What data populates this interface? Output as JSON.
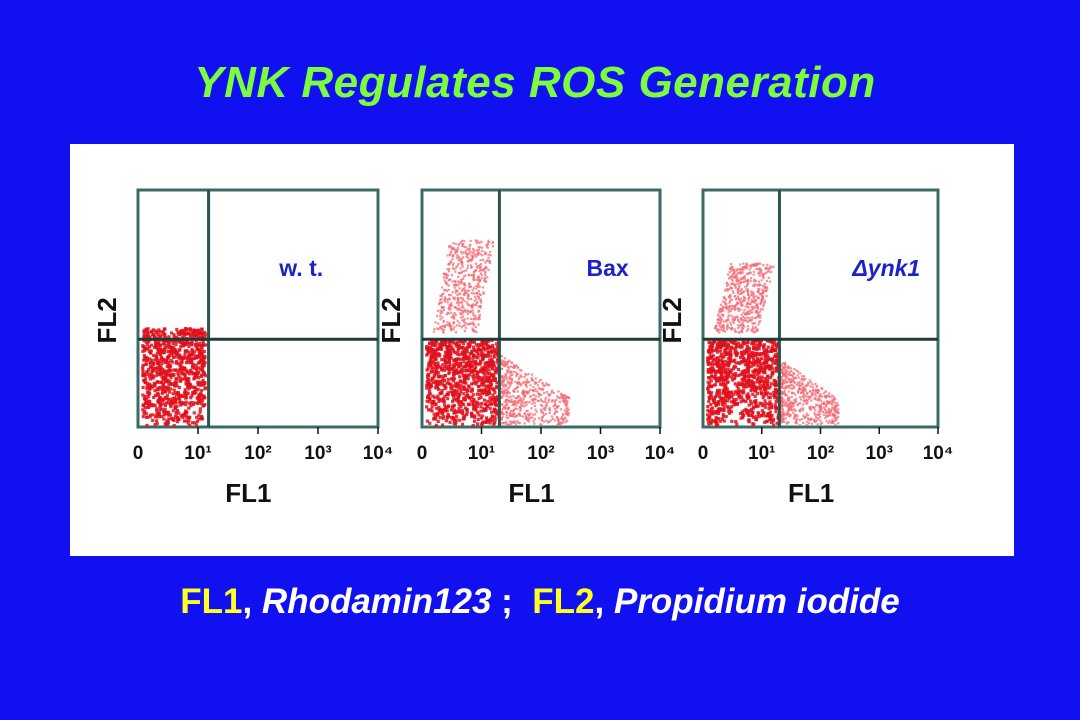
{
  "title": "YNK Regulates ROS Generation",
  "caption": {
    "fl1": "FL1",
    "fl1_dye": "Rhodamin123",
    "fl2": "FL2",
    "fl2_dye": "Propidium iodide"
  },
  "colors": {
    "background": "#1010f0",
    "title": "#7CFC3C",
    "highlight": "#FFFF22",
    "events_dense": "#e0101c",
    "events_sparse": "#f36b74",
    "label": "#1a22c8"
  },
  "chart_data": [
    {
      "type": "scatter",
      "label": "w. t.",
      "xlabel": "FL1",
      "ylabel": "FL2",
      "x_ticks": [
        "0",
        "10¹",
        "10²",
        "10³",
        "10⁴"
      ],
      "xlim": [
        0,
        10000
      ],
      "x_scale": "log",
      "quadrant_gate": {
        "x": 15,
        "y": 0.37
      },
      "populations": [
        {
          "region": "lower-left",
          "density": "dense",
          "x_range": [
            0,
            10
          ],
          "y_fraction": [
            0,
            0.42
          ]
        }
      ]
    },
    {
      "type": "scatter",
      "label": "Bax",
      "xlabel": "FL1",
      "ylabel": "FL2",
      "x_ticks": [
        "0",
        "10¹",
        "10²",
        "10³",
        "10⁴"
      ],
      "xlim": [
        0,
        10000
      ],
      "x_scale": "log",
      "quadrant_gate": {
        "x": 20,
        "y": 0.37
      },
      "populations": [
        {
          "region": "upper-left",
          "density": "sparse",
          "x_range": [
            0,
            15
          ],
          "y_fraction": [
            0.4,
            0.8
          ]
        },
        {
          "region": "lower-left",
          "density": "dense",
          "x_range": [
            0,
            15
          ],
          "y_fraction": [
            0,
            0.37
          ]
        },
        {
          "region": "lower-right",
          "density": "sparse",
          "x_range": [
            20,
            300
          ],
          "y_fraction": [
            0,
            0.3
          ]
        }
      ]
    },
    {
      "type": "scatter",
      "label": "Δynk1",
      "xlabel": "FL1",
      "ylabel": "FL2",
      "x_ticks": [
        "0",
        "10¹",
        "10²",
        "10³",
        "10⁴"
      ],
      "xlim": [
        0,
        10000
      ],
      "x_scale": "log",
      "quadrant_gate": {
        "x": 20,
        "y": 0.37
      },
      "populations": [
        {
          "region": "upper-left",
          "density": "sparse",
          "x_range": [
            0,
            15
          ],
          "y_fraction": [
            0.4,
            0.7
          ]
        },
        {
          "region": "lower-left",
          "density": "dense",
          "x_range": [
            0,
            15
          ],
          "y_fraction": [
            0,
            0.37
          ]
        },
        {
          "region": "lower-right",
          "density": "sparse",
          "x_range": [
            20,
            200
          ],
          "y_fraction": [
            0,
            0.28
          ]
        }
      ]
    }
  ]
}
